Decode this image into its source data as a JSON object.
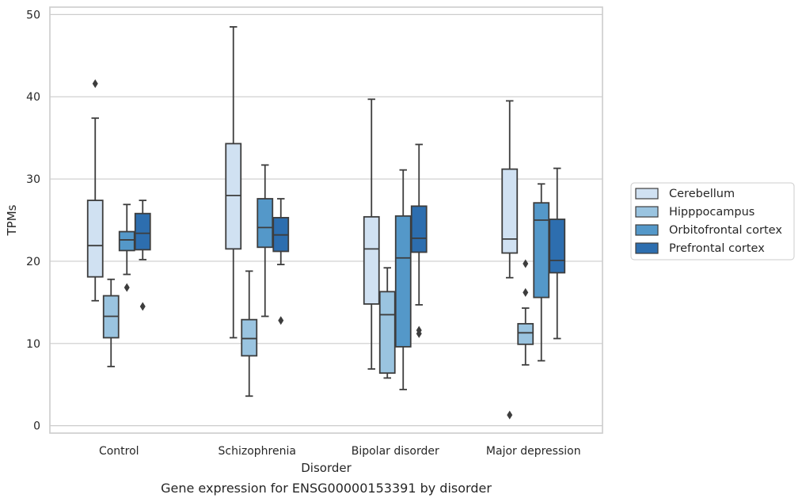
{
  "caption": "Gene expression for ENSG00000153391 by disorder",
  "chart_data": {
    "type": "box",
    "xlabel": "Disorder",
    "ylabel": "TPMs",
    "ylim": [
      -0.9,
      50.9
    ],
    "yticks": [
      0,
      10,
      20,
      30,
      40,
      50
    ],
    "grid": "horizontal",
    "legend_position": "right",
    "categories": [
      "Control",
      "Schizophrenia",
      "Bipolar disorder",
      "Major depression"
    ],
    "series": [
      {
        "name": "Cerebellum",
        "color": "#d0e1f2",
        "boxes": [
          {
            "whisker_low": 15.2,
            "q1": 18.1,
            "median": 21.9,
            "q3": 27.4,
            "whisker_high": 37.4,
            "outliers": [
              41.6
            ]
          },
          {
            "whisker_low": 10.7,
            "q1": 21.5,
            "median": 28.0,
            "q3": 34.3,
            "whisker_high": 48.5,
            "outliers": []
          },
          {
            "whisker_low": 6.9,
            "q1": 14.8,
            "median": 21.5,
            "q3": 25.4,
            "whisker_high": 39.7,
            "outliers": []
          },
          {
            "whisker_low": 18.0,
            "q1": 21.0,
            "median": 22.7,
            "q3": 31.2,
            "whisker_high": 39.5,
            "outliers": [
              1.3
            ]
          }
        ]
      },
      {
        "name": "Hipppocampus",
        "color": "#9ac4e0",
        "boxes": [
          {
            "whisker_low": 7.2,
            "q1": 10.7,
            "median": 13.3,
            "q3": 15.8,
            "whisker_high": 17.8,
            "outliers": []
          },
          {
            "whisker_low": 3.6,
            "q1": 8.5,
            "median": 10.6,
            "q3": 12.9,
            "whisker_high": 18.8,
            "outliers": []
          },
          {
            "whisker_low": 5.8,
            "q1": 6.4,
            "median": 13.5,
            "q3": 16.3,
            "whisker_high": 19.2,
            "outliers": []
          },
          {
            "whisker_low": 7.4,
            "q1": 9.9,
            "median": 11.3,
            "q3": 12.4,
            "whisker_high": 14.3,
            "outliers": [
              16.2,
              19.7
            ]
          }
        ]
      },
      {
        "name": "Orbitofrontal cortex",
        "color": "#5498c9",
        "boxes": [
          {
            "whisker_low": 18.4,
            "q1": 21.3,
            "median": 22.6,
            "q3": 23.6,
            "whisker_high": 26.9,
            "outliers": [
              16.8
            ]
          },
          {
            "whisker_low": 13.3,
            "q1": 21.7,
            "median": 24.1,
            "q3": 27.6,
            "whisker_high": 31.7,
            "outliers": []
          },
          {
            "whisker_low": 4.4,
            "q1": 9.6,
            "median": 20.4,
            "q3": 25.5,
            "whisker_high": 31.1,
            "outliers": []
          },
          {
            "whisker_low": 7.9,
            "q1": 15.6,
            "median": 25.0,
            "q3": 27.1,
            "whisker_high": 29.4,
            "outliers": []
          }
        ]
      },
      {
        "name": "Prefrontal cortex",
        "color": "#2d6eaf",
        "boxes": [
          {
            "whisker_low": 20.2,
            "q1": 21.4,
            "median": 23.4,
            "q3": 25.8,
            "whisker_high": 27.4,
            "outliers": [
              14.5
            ]
          },
          {
            "whisker_low": 19.6,
            "q1": 21.2,
            "median": 23.2,
            "q3": 25.3,
            "whisker_high": 27.6,
            "outliers": [
              12.8
            ]
          },
          {
            "whisker_low": 14.7,
            "q1": 21.1,
            "median": 22.8,
            "q3": 26.7,
            "whisker_high": 34.2,
            "outliers": [
              11.2,
              11.6
            ]
          },
          {
            "whisker_low": 10.6,
            "q1": 18.6,
            "median": 20.1,
            "q3": 25.1,
            "whisker_high": 31.3,
            "outliers": []
          }
        ]
      }
    ]
  }
}
